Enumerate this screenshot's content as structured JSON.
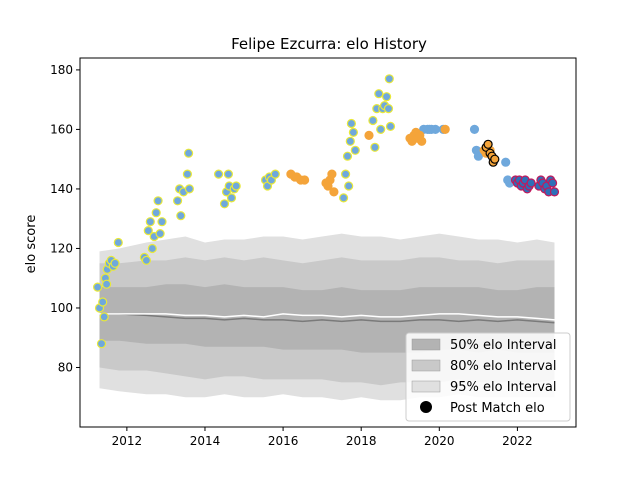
{
  "chart_data": {
    "type": "scatter",
    "title": "Felipe Ezcurra: elo History",
    "xlabel": "",
    "ylabel": "elo score",
    "xlim": [
      2010.8,
      2023.5
    ],
    "ylim": [
      60,
      184
    ],
    "xticks": [
      2012,
      2014,
      2016,
      2018,
      2020,
      2022
    ],
    "xtick_labels": [
      "2012",
      "2014",
      "2016",
      "2018",
      "2020",
      "2022"
    ],
    "yticks": [
      80,
      100,
      120,
      140,
      160,
      180
    ],
    "ytick_labels": [
      "80",
      "100",
      "120",
      "140",
      "160",
      "180"
    ],
    "grid": false,
    "legend": {
      "position": "lower-right",
      "entries": [
        {
          "label": "50% elo Interval",
          "symbol": "patch",
          "color": "#b3b3b3"
        },
        {
          "label": "80% elo Interval",
          "symbol": "patch",
          "color": "#c9c9c9"
        },
        {
          "label": "95% elo Interval",
          "symbol": "patch",
          "color": "#e0e0e0"
        },
        {
          "label": "Post Match elo",
          "symbol": "marker",
          "color": "#000000"
        }
      ]
    },
    "bands": {
      "x": [
        2011.3,
        2011.8,
        2012.5,
        2013.0,
        2013.5,
        2014.0,
        2014.5,
        2015.0,
        2015.5,
        2016.0,
        2016.5,
        2017.0,
        2017.5,
        2018.0,
        2018.5,
        2019.0,
        2019.5,
        2020.0,
        2020.5,
        2021.0,
        2021.5,
        2022.0,
        2022.5,
        2022.95
      ],
      "median": [
        98,
        98,
        97.5,
        97,
        96.5,
        96.5,
        96,
        96.5,
        96,
        96,
        95.5,
        96,
        95.5,
        96,
        95.5,
        95.5,
        96,
        96,
        95.5,
        96,
        95.5,
        96,
        95.5,
        95
      ],
      "mean": [
        98,
        98,
        98,
        98,
        97.5,
        97.5,
        97,
        97.5,
        97,
        98,
        97.5,
        97.5,
        97,
        97.5,
        97,
        97,
        97.5,
        98,
        98,
        97.5,
        97,
        97,
        96.5,
        96
      ],
      "p50_low": [
        89,
        89,
        88,
        88,
        88,
        87,
        87,
        87,
        87,
        86,
        86,
        86,
        86,
        85,
        85,
        85,
        85,
        86,
        86,
        85,
        86,
        85,
        85,
        85
      ],
      "p50_high": [
        107,
        107,
        107,
        108,
        108,
        107,
        108,
        107,
        107,
        107,
        106,
        106,
        107,
        106,
        106,
        106,
        107,
        107,
        107,
        107,
        106,
        106,
        107,
        107
      ],
      "p80_low": [
        80,
        79,
        79,
        78,
        77,
        76,
        77,
        77,
        76,
        76,
        76,
        76,
        75,
        75,
        74,
        75,
        75,
        75,
        76,
        75,
        75,
        75,
        75,
        76
      ],
      "p80_high": [
        115,
        115,
        116,
        116,
        117,
        116,
        117,
        116,
        117,
        116,
        115,
        116,
        117,
        116,
        116,
        116,
        117,
        117,
        116,
        116,
        115,
        116,
        116,
        116
      ],
      "p95_low": [
        73,
        72,
        71,
        71,
        70,
        70,
        71,
        70,
        70,
        71,
        70,
        70,
        69,
        70,
        69,
        69,
        70,
        70,
        71,
        70,
        70,
        70,
        70,
        70
      ],
      "p95_high": [
        119,
        120,
        122,
        123,
        124,
        122,
        123,
        123,
        124,
        124,
        123,
        124,
        125,
        124,
        124,
        123,
        124,
        125,
        124,
        123,
        123,
        122,
        123,
        122
      ]
    },
    "series": [
      {
        "color": "#6fa8dc",
        "edge": "#e8e83a",
        "points": [
          [
            2011.25,
            107
          ],
          [
            2011.3,
            100
          ],
          [
            2011.35,
            88
          ],
          [
            2011.38,
            102
          ],
          [
            2011.42,
            97
          ],
          [
            2011.45,
            110
          ],
          [
            2011.48,
            108
          ],
          [
            2011.5,
            113
          ],
          [
            2011.55,
            115
          ],
          [
            2011.6,
            116
          ],
          [
            2011.65,
            114
          ],
          [
            2011.7,
            115
          ],
          [
            2011.78,
            122
          ],
          [
            2012.45,
            117
          ],
          [
            2012.5,
            116
          ],
          [
            2012.55,
            126
          ],
          [
            2012.6,
            129
          ],
          [
            2012.65,
            120
          ],
          [
            2012.7,
            124
          ],
          [
            2012.75,
            132
          ],
          [
            2012.8,
            136
          ],
          [
            2012.85,
            125
          ],
          [
            2012.9,
            129
          ],
          [
            2013.3,
            136
          ],
          [
            2013.35,
            140
          ],
          [
            2013.38,
            131
          ],
          [
            2013.45,
            139
          ],
          [
            2013.55,
            145
          ],
          [
            2013.58,
            152
          ],
          [
            2013.6,
            140
          ],
          [
            2014.35,
            145
          ],
          [
            2014.5,
            135
          ],
          [
            2014.55,
            139
          ],
          [
            2014.6,
            145
          ],
          [
            2014.62,
            141
          ],
          [
            2014.68,
            137
          ],
          [
            2014.75,
            140
          ],
          [
            2014.8,
            141
          ],
          [
            2015.55,
            143
          ],
          [
            2015.6,
            141
          ],
          [
            2015.65,
            144
          ],
          [
            2015.7,
            143
          ],
          [
            2015.8,
            145
          ],
          [
            2017.55,
            137
          ],
          [
            2017.6,
            145
          ],
          [
            2017.65,
            151
          ],
          [
            2017.68,
            141
          ],
          [
            2017.72,
            156
          ],
          [
            2017.75,
            162
          ],
          [
            2017.8,
            159
          ],
          [
            2017.85,
            153
          ],
          [
            2018.3,
            163
          ],
          [
            2018.35,
            154
          ],
          [
            2018.4,
            167
          ],
          [
            2018.45,
            172
          ],
          [
            2018.5,
            160
          ],
          [
            2018.55,
            167
          ],
          [
            2018.6,
            168
          ],
          [
            2018.65,
            171
          ],
          [
            2018.7,
            167
          ],
          [
            2018.72,
            177
          ],
          [
            2018.75,
            161
          ]
        ]
      },
      {
        "color": "#6fa8dc",
        "edge": "#6fa8dc",
        "points": [
          [
            2019.6,
            160
          ],
          [
            2019.7,
            160
          ],
          [
            2019.75,
            160
          ],
          [
            2019.8,
            160
          ],
          [
            2019.9,
            160
          ],
          [
            2020.1,
            160
          ],
          [
            2020.9,
            160
          ],
          [
            2020.95,
            153
          ],
          [
            2021.0,
            151
          ],
          [
            2021.7,
            149
          ],
          [
            2021.75,
            143
          ],
          [
            2021.8,
            142
          ]
        ]
      },
      {
        "color": "#f4a43a",
        "edge": "#f4a43a",
        "points": [
          [
            2016.2,
            145
          ],
          [
            2016.3,
            144
          ],
          [
            2016.35,
            144
          ],
          [
            2016.45,
            143
          ],
          [
            2016.55,
            143
          ],
          [
            2017.1,
            142
          ],
          [
            2017.15,
            141
          ],
          [
            2017.2,
            143
          ],
          [
            2017.25,
            145
          ],
          [
            2017.3,
            139
          ],
          [
            2018.2,
            158
          ],
          [
            2019.25,
            157
          ],
          [
            2019.3,
            156
          ],
          [
            2019.35,
            158
          ],
          [
            2019.4,
            159
          ],
          [
            2019.45,
            157
          ],
          [
            2019.5,
            158
          ],
          [
            2019.55,
            156
          ],
          [
            2020.15,
            160
          ],
          [
            2021.15,
            153
          ],
          [
            2021.2,
            152
          ],
          [
            2021.25,
            152
          ],
          [
            2021.3,
            153
          ]
        ]
      },
      {
        "color": "#f4a43a",
        "edge": "#000000",
        "points": [
          [
            2021.2,
            154
          ],
          [
            2021.25,
            155
          ],
          [
            2021.3,
            152
          ],
          [
            2021.35,
            151
          ],
          [
            2021.38,
            149
          ],
          [
            2021.42,
            150
          ]
        ]
      },
      {
        "color": "#2e6fb8",
        "edge": "#c2185b",
        "points": [
          [
            2021.95,
            143
          ],
          [
            2022.0,
            142
          ],
          [
            2022.05,
            143
          ],
          [
            2022.1,
            141
          ],
          [
            2022.15,
            142
          ],
          [
            2022.2,
            143
          ],
          [
            2022.25,
            140
          ],
          [
            2022.3,
            141
          ],
          [
            2022.35,
            142
          ],
          [
            2022.55,
            141
          ],
          [
            2022.6,
            143
          ],
          [
            2022.65,
            142
          ],
          [
            2022.7,
            140
          ],
          [
            2022.75,
            141
          ],
          [
            2022.8,
            139
          ],
          [
            2022.85,
            143
          ],
          [
            2022.9,
            142
          ],
          [
            2022.95,
            139
          ]
        ]
      }
    ]
  }
}
